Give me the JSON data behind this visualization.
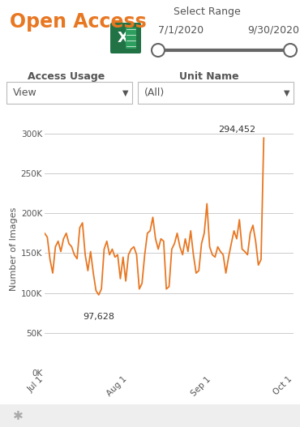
{
  "title": "Open Access",
  "title_color": "#E87722",
  "select_range_label": "Select Range",
  "date_start": "7/1/2020",
  "date_end": "9/30/2020",
  "access_usage_label": "Access Usage",
  "access_usage_value": "View",
  "unit_name_label": "Unit Name",
  "unit_name_value": "(All)",
  "ylabel": "Number of Images",
  "ytick_labels": [
    "0K",
    "50K",
    "100K",
    "150K",
    "200K",
    "250K",
    "300K"
  ],
  "ytick_values": [
    0,
    50000,
    100000,
    150000,
    200000,
    250000,
    300000
  ],
  "xtick_labels": [
    "Jul 1",
    "Aug 1",
    "Sep 1",
    "Oct 1"
  ],
  "xtick_positions": [
    0,
    31,
    62,
    92
  ],
  "line_color": "#E87722",
  "min_label": "97,628",
  "max_label": "294,452",
  "bg_color": "#ffffff",
  "plot_bg_color": "#ffffff",
  "grid_color": "#cccccc",
  "bottom_bar_color": "#eeeeee",
  "border_color": "#bbbbbb",
  "text_color": "#555555",
  "slider_color": "#666666",
  "excel_green": "#217346",
  "y_values": [
    175000,
    170000,
    142000,
    125000,
    158000,
    165000,
    152000,
    168000,
    175000,
    162000,
    158000,
    148000,
    143000,
    182000,
    188000,
    148000,
    128000,
    152000,
    125000,
    103000,
    97628,
    105000,
    155000,
    165000,
    148000,
    155000,
    145000,
    148000,
    118000,
    145000,
    115000,
    148000,
    155000,
    158000,
    148000,
    105000,
    112000,
    148000,
    175000,
    178000,
    195000,
    168000,
    155000,
    168000,
    165000,
    105000,
    108000,
    155000,
    162000,
    175000,
    158000,
    148000,
    168000,
    152000,
    178000,
    148000,
    125000,
    128000,
    162000,
    175000,
    212000,
    158000,
    148000,
    145000,
    158000,
    152000,
    148000,
    125000,
    145000,
    162000,
    178000,
    168000,
    192000,
    155000,
    152000,
    148000,
    175000,
    185000,
    165000,
    135000,
    142000,
    294452
  ]
}
